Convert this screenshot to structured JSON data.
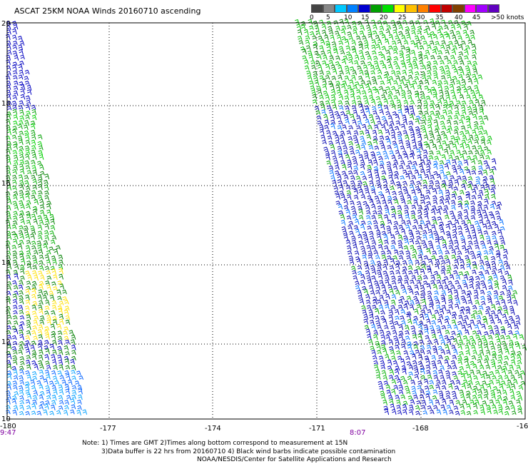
{
  "title": "ASCAT 25KM NOAA Winds 20160710 ascending",
  "legend": {
    "unit_label": ">50 knots",
    "labels": [
      "0",
      "5",
      "10",
      "15",
      "20",
      "25",
      "30",
      "35",
      "40",
      "45"
    ],
    "colors": [
      "#444444",
      "#888888",
      "#00c8ff",
      "#0080ff",
      "#0000d0",
      "#00a000",
      "#00e000",
      "#ffff00",
      "#ffc000",
      "#ff8000",
      "#ff0000",
      "#c00000",
      "#804000",
      "#ff00ff",
      "#a000ff",
      "#6000c0"
    ]
  },
  "map": {
    "lon_labels": [
      "-180",
      "-177",
      "-174",
      "-171",
      "-168",
      "-16"
    ],
    "lat_labels": [
      "20",
      "18",
      "16",
      "14",
      "12",
      "10"
    ],
    "time_labels": [
      "9:47",
      "8:07"
    ]
  },
  "notes": {
    "line1": "Note: 1) Times are GMT 2)Times along bottom correspond to measurement at 15N",
    "line2": "3)Data buffer is 22 hrs from 20160710 4) Black wind barbs indicate possible contamination",
    "line3": "NOAA/NESDIS/Center for Satellite Applications and Research"
  }
}
